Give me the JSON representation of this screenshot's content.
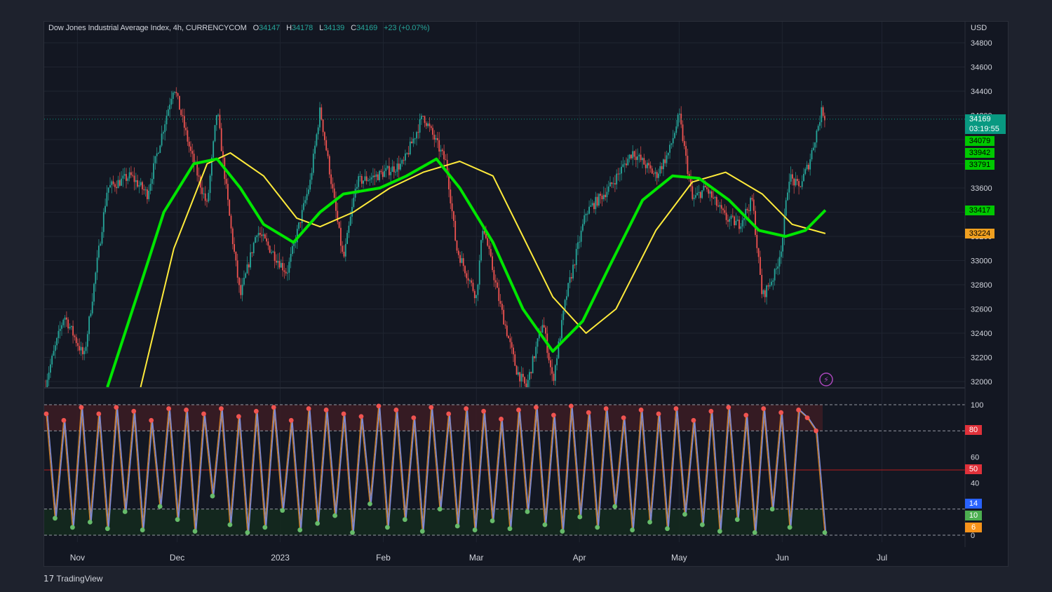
{
  "legend": {
    "symbol": "Dow Jones Industrial Average Index, 4h, CURRENCYCOM",
    "open_label": "O",
    "open": "34147",
    "high_label": "H",
    "high": "34178",
    "low_label": "L",
    "low": "34139",
    "close_label": "C",
    "close": "34169",
    "change": "+23 (+0.07%)"
  },
  "currency": "USD",
  "price_tags": [
    {
      "value": "34169",
      "sub": "03:19:55",
      "color": "#089981"
    },
    {
      "value": "34079",
      "color": "#00c800"
    },
    {
      "value": "33942",
      "color": "#00c800"
    },
    {
      "value": "33791",
      "color": "#00c800"
    },
    {
      "value": "33417",
      "color": "#00c800"
    },
    {
      "value": "33224",
      "color": "#f0a020"
    }
  ],
  "osc_tags": [
    {
      "value": "80",
      "color": "#e0313a"
    },
    {
      "value": "50",
      "color": "#e0313a"
    },
    {
      "value": "14",
      "color": "#2962ff"
    },
    {
      "value": "10",
      "color": "#4caf50"
    },
    {
      "value": "6",
      "color": "#f7931a"
    }
  ],
  "watermark": "TradingView",
  "chart_data": [
    {
      "type": "candlestick",
      "timeframe": "4h",
      "x_tick_labels": [
        "Nov",
        "Dec",
        "2023",
        "Feb",
        "Mar",
        "Apr",
        "May",
        "Jun",
        "Jul"
      ],
      "y_tick_labels": [
        34800,
        34600,
        34400,
        34200,
        34000,
        33800,
        33600,
        33400,
        33200,
        33000,
        32800,
        32600,
        32400,
        32200,
        32000
      ],
      "ylim": [
        31950,
        34900
      ],
      "last_price": 34169,
      "price_path": [
        {
          "x": "2022-10-22",
          "y": 31950
        },
        {
          "x": "2022-10-28",
          "y": 32550
        },
        {
          "x": "2022-11-03",
          "y": 32200
        },
        {
          "x": "2022-11-10",
          "y": 33600
        },
        {
          "x": "2022-11-17",
          "y": 33700
        },
        {
          "x": "2022-11-22",
          "y": 33550
        },
        {
          "x": "2022-11-30",
          "y": 34450
        },
        {
          "x": "2022-12-05",
          "y": 33900
        },
        {
          "x": "2022-12-10",
          "y": 33450
        },
        {
          "x": "2022-12-13",
          "y": 34250
        },
        {
          "x": "2022-12-17",
          "y": 33300
        },
        {
          "x": "2022-12-20",
          "y": 32700
        },
        {
          "x": "2022-12-25",
          "y": 33250
        },
        {
          "x": "2023-01-03",
          "y": 32900
        },
        {
          "x": "2023-01-10",
          "y": 33650
        },
        {
          "x": "2023-01-13",
          "y": 34250
        },
        {
          "x": "2023-01-20",
          "y": 33000
        },
        {
          "x": "2023-01-24",
          "y": 33650
        },
        {
          "x": "2023-01-30",
          "y": 33700
        },
        {
          "x": "2023-02-07",
          "y": 33800
        },
        {
          "x": "2023-02-13",
          "y": 34200
        },
        {
          "x": "2023-02-20",
          "y": 33800
        },
        {
          "x": "2023-02-23",
          "y": 33100
        },
        {
          "x": "2023-03-01",
          "y": 32700
        },
        {
          "x": "2023-03-03",
          "y": 33300
        },
        {
          "x": "2023-03-08",
          "y": 32650
        },
        {
          "x": "2023-03-13",
          "y": 32100
        },
        {
          "x": "2023-03-16",
          "y": 31950
        },
        {
          "x": "2023-03-21",
          "y": 32500
        },
        {
          "x": "2023-03-24",
          "y": 32000
        },
        {
          "x": "2023-03-28",
          "y": 32700
        },
        {
          "x": "2023-04-03",
          "y": 33400
        },
        {
          "x": "2023-04-10",
          "y": 33600
        },
        {
          "x": "2023-04-17",
          "y": 33900
        },
        {
          "x": "2023-04-24",
          "y": 33700
        },
        {
          "x": "2023-04-28",
          "y": 33900
        },
        {
          "x": "2023-05-01",
          "y": 34200
        },
        {
          "x": "2023-05-05",
          "y": 33500
        },
        {
          "x": "2023-05-09",
          "y": 33600
        },
        {
          "x": "2023-05-15",
          "y": 33350
        },
        {
          "x": "2023-05-19",
          "y": 33300
        },
        {
          "x": "2023-05-23",
          "y": 33500
        },
        {
          "x": "2023-05-26",
          "y": 32700
        },
        {
          "x": "2023-05-30",
          "y": 32900
        },
        {
          "x": "2023-06-01",
          "y": 33150
        },
        {
          "x": "2023-06-03",
          "y": 33700
        },
        {
          "x": "2023-06-06",
          "y": 33600
        },
        {
          "x": "2023-06-09",
          "y": 33800
        },
        {
          "x": "2023-06-13",
          "y": 34250
        },
        {
          "x": "2023-06-14",
          "y": 34169
        }
      ],
      "series": [
        {
          "color": "#ffeb3b",
          "values": [
            {
              "x": "2022-11-20",
              "y": 31950
            },
            {
              "x": "2022-11-30",
              "y": 33100
            },
            {
              "x": "2022-12-10",
              "y": 33800
            },
            {
              "x": "2022-12-17",
              "y": 33890
            },
            {
              "x": "2022-12-27",
              "y": 33700
            },
            {
              "x": "2023-01-06",
              "y": 33350
            },
            {
              "x": "2023-01-13",
              "y": 33280
            },
            {
              "x": "2023-01-23",
              "y": 33400
            },
            {
              "x": "2023-02-03",
              "y": 33600
            },
            {
              "x": "2023-02-13",
              "y": 33730
            },
            {
              "x": "2023-02-24",
              "y": 33820
            },
            {
              "x": "2023-03-06",
              "y": 33700
            },
            {
              "x": "2023-03-15",
              "y": 33200
            },
            {
              "x": "2023-03-24",
              "y": 32700
            },
            {
              "x": "2023-04-03",
              "y": 32400
            },
            {
              "x": "2023-04-12",
              "y": 32600
            },
            {
              "x": "2023-04-24",
              "y": 33250
            },
            {
              "x": "2023-05-05",
              "y": 33650
            },
            {
              "x": "2023-05-15",
              "y": 33730
            },
            {
              "x": "2023-05-26",
              "y": 33550
            },
            {
              "x": "2023-06-04",
              "y": 33300
            },
            {
              "x": "2023-06-14",
              "y": 33224
            }
          ]
        },
        {
          "color": "#00e600",
          "values": [
            {
              "x": "2022-11-10",
              "y": 31950
            },
            {
              "x": "2022-11-20",
              "y": 32800
            },
            {
              "x": "2022-11-27",
              "y": 33400
            },
            {
              "x": "2022-12-06",
              "y": 33800
            },
            {
              "x": "2022-12-13",
              "y": 33840
            },
            {
              "x": "2022-12-20",
              "y": 33600
            },
            {
              "x": "2022-12-27",
              "y": 33300
            },
            {
              "x": "2023-01-05",
              "y": 33150
            },
            {
              "x": "2023-01-13",
              "y": 33400
            },
            {
              "x": "2023-01-20",
              "y": 33550
            },
            {
              "x": "2023-01-31",
              "y": 33600
            },
            {
              "x": "2023-02-08",
              "y": 33700
            },
            {
              "x": "2023-02-17",
              "y": 33840
            },
            {
              "x": "2023-02-24",
              "y": 33600
            },
            {
              "x": "2023-03-06",
              "y": 33150
            },
            {
              "x": "2023-03-15",
              "y": 32600
            },
            {
              "x": "2023-03-24",
              "y": 32250
            },
            {
              "x": "2023-04-02",
              "y": 32500
            },
            {
              "x": "2023-04-10",
              "y": 32950
            },
            {
              "x": "2023-04-20",
              "y": 33500
            },
            {
              "x": "2023-04-29",
              "y": 33700
            },
            {
              "x": "2023-05-07",
              "y": 33680
            },
            {
              "x": "2023-05-16",
              "y": 33500
            },
            {
              "x": "2023-05-25",
              "y": 33250
            },
            {
              "x": "2023-06-02",
              "y": 33200
            },
            {
              "x": "2023-06-08",
              "y": 33250
            },
            {
              "x": "2023-06-14",
              "y": 33417
            }
          ]
        }
      ]
    },
    {
      "type": "line",
      "ylim": [
        0,
        100
      ],
      "y_tick_labels": [
        100,
        80,
        60,
        40,
        0
      ],
      "reference_lines": [
        100,
        80,
        50,
        20,
        0
      ],
      "oscillator_values": [
        93,
        13,
        88,
        6,
        98,
        10,
        93,
        5,
        98,
        18,
        95,
        4,
        88,
        22,
        97,
        12,
        96,
        3,
        93,
        30,
        97,
        8,
        91,
        2,
        95,
        6,
        98,
        19,
        88,
        4,
        97,
        9,
        96,
        15,
        93,
        2,
        91,
        24,
        99,
        6,
        96,
        12,
        90,
        3,
        98,
        20,
        93,
        7,
        97,
        4,
        95,
        11,
        89,
        5,
        96,
        18,
        98,
        8,
        92,
        3,
        99,
        14,
        94,
        6,
        97,
        22,
        90,
        4,
        96,
        10,
        93,
        5,
        97,
        16,
        88,
        8,
        95,
        3,
        98,
        12,
        92,
        2,
        97,
        20,
        94,
        6,
        96,
        90,
        80,
        2
      ]
    }
  ]
}
